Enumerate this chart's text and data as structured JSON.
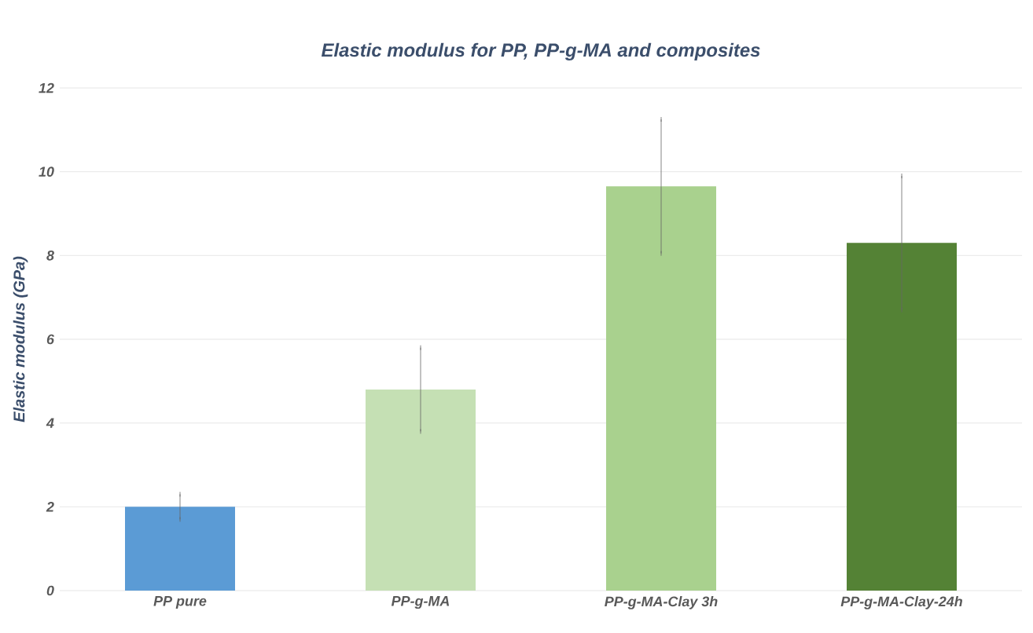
{
  "chart_data": {
    "type": "bar",
    "title": "Elastic modulus for PP, PP-g-MA and composites",
    "ylabel": "Elastic modulus (GPa)",
    "categories": [
      "PP pure",
      "PP-g-MA",
      "PP-g-MA-Clay 3h",
      "PP-g-MA-Clay-24h"
    ],
    "values": [
      2.0,
      4.8,
      9.65,
      8.3
    ],
    "errors": [
      0.3,
      1.0,
      1.6,
      1.6
    ],
    "colors": [
      "#5b9bd5",
      "#c5e0b4",
      "#a9d18e",
      "#548235"
    ],
    "ylim": [
      0,
      12
    ],
    "yticks": [
      0,
      2,
      4,
      6,
      8,
      10,
      12
    ],
    "grid": "y"
  }
}
